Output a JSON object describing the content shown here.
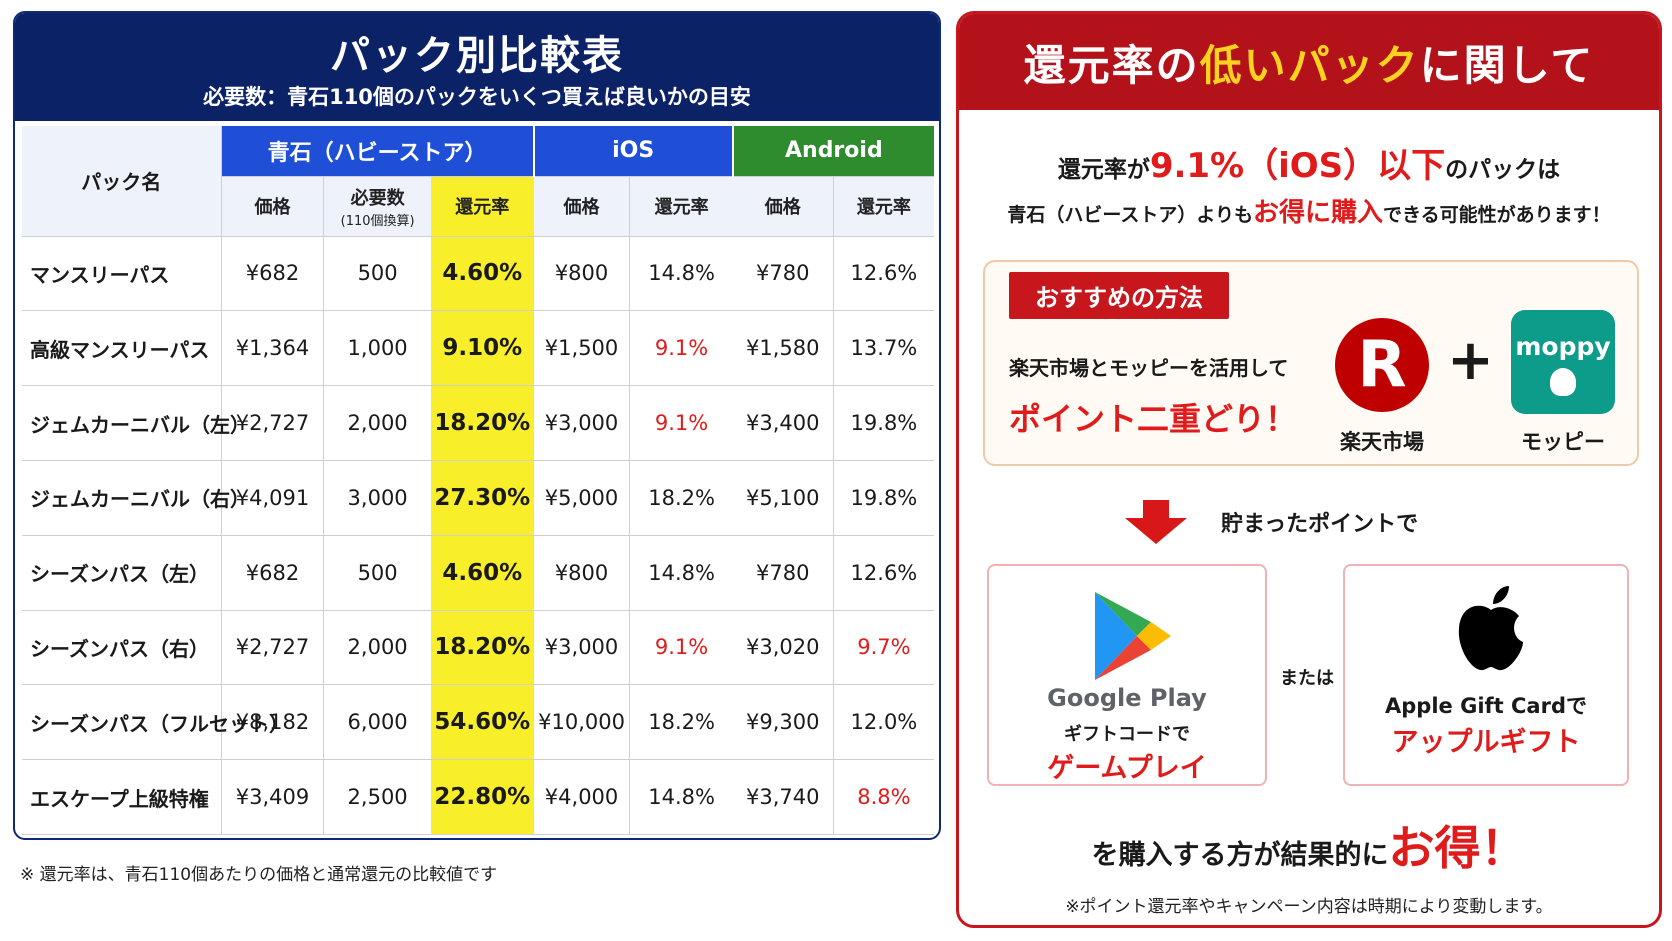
{
  "left": {
    "title": "パック別比較表",
    "subtitle": "必要数：青石110個のパックをいくつ買えば良いかの目安",
    "table": {
      "pack_name_header": "パック名",
      "groups": [
        "青石（ハビーストア）",
        "iOS",
        "Android"
      ],
      "subheaders": {
        "price": "価格",
        "required": "必要数",
        "required_note": "(110個換算)",
        "rate": "還元率"
      },
      "rows": [
        {
          "name": "マンスリーパス",
          "price": "¥682",
          "required": "500",
          "rate": "4.60%",
          "ios_price": "¥800",
          "ios_rate": "14.8%",
          "ios_red": false,
          "and_price": "¥780",
          "and_rate": "12.6%",
          "and_red": false
        },
        {
          "name": "高級マンスリーパス",
          "price": "¥1,364",
          "required": "1,000",
          "rate": "9.10%",
          "ios_price": "¥1,500",
          "ios_rate": "9.1%",
          "ios_red": true,
          "and_price": "¥1,580",
          "and_rate": "13.7%",
          "and_red": false
        },
        {
          "name": "ジェムカーニバル（左）",
          "price": "¥2,727",
          "required": "2,000",
          "rate": "18.20%",
          "ios_price": "¥3,000",
          "ios_rate": "9.1%",
          "ios_red": true,
          "and_price": "¥3,400",
          "and_rate": "19.8%",
          "and_red": false
        },
        {
          "name": "ジェムカーニバル（右）",
          "price": "¥4,091",
          "required": "3,000",
          "rate": "27.30%",
          "ios_price": "¥5,000",
          "ios_rate": "18.2%",
          "ios_red": false,
          "and_price": "¥5,100",
          "and_rate": "19.8%",
          "and_red": false
        },
        {
          "name": "シーズンパス（左）",
          "price": "¥682",
          "required": "500",
          "rate": "4.60%",
          "ios_price": "¥800",
          "ios_rate": "14.8%",
          "ios_red": false,
          "and_price": "¥780",
          "and_rate": "12.6%",
          "and_red": false
        },
        {
          "name": "シーズンパス（右）",
          "price": "¥2,727",
          "required": "2,000",
          "rate": "18.20%",
          "ios_price": "¥3,000",
          "ios_rate": "9.1%",
          "ios_red": true,
          "and_price": "¥3,020",
          "and_rate": "9.7%",
          "and_red": true
        },
        {
          "name": "シーズンパス（フルセット）",
          "price": "¥8,182",
          "required": "6,000",
          "rate": "54.60%",
          "ios_price": "¥10,000",
          "ios_rate": "18.2%",
          "ios_red": false,
          "and_price": "¥9,300",
          "and_rate": "12.0%",
          "and_red": false
        },
        {
          "name": "エスケープ上級特権",
          "price": "¥3,409",
          "required": "2,500",
          "rate": "22.80%",
          "ios_price": "¥4,000",
          "ios_rate": "14.8%",
          "ios_red": false,
          "and_price": "¥3,740",
          "and_rate": "8.8%",
          "and_red": true
        }
      ]
    },
    "footnote": "※ 還元率は、青石110個あたりの価格と通常還元の比較値です"
  },
  "right": {
    "title_pre": "還元率の",
    "title_highlight": "低いパック",
    "title_post": "に関して",
    "lead1_pre": "還元率が",
    "lead1_highlight": "9.1%（iOS）以下",
    "lead1_post": "のパックは",
    "lead2_pre": "青石（ハビーストア）よりも",
    "lead2_highlight": "お得に購入",
    "lead2_post": "できる可能性があります！",
    "method_tag": "おすすめの方法",
    "method_text": "楽天市場とモッピーを活用して",
    "method_slogan": "ポイント二重どり！",
    "rakuten_letter": "R",
    "rakuten_label": "楽天市場",
    "plus": "+",
    "moppy_word": "moppy",
    "moppy_label": "モッピー",
    "points_text": "貯まったポイントで",
    "google_name": "Google Play",
    "google_line1": "ギフトコードで",
    "google_line2": "ゲームプレイ",
    "or_text": "または",
    "apple_line1": "Apple Gift Cardで",
    "apple_line2": "アップルギフト",
    "conclusion_pre": "を購入する方が結果的に",
    "conclusion_big": "お得！",
    "footnote": "※ポイント還元率やキャンペーン内容は時期により変動します。"
  },
  "colors": {
    "navy": "#0c2266",
    "blue": "#1f4fd6",
    "green": "#2e8b2e",
    "highlight_yellow": "#f8ee2a",
    "red": "#e01b1b",
    "dark_red": "#b3121a",
    "moppy_teal": "#0d9c8a"
  },
  "icons": [
    "rakuten-logo",
    "moppy-logo",
    "down-arrow-icon",
    "google-play-icon",
    "apple-icon"
  ]
}
